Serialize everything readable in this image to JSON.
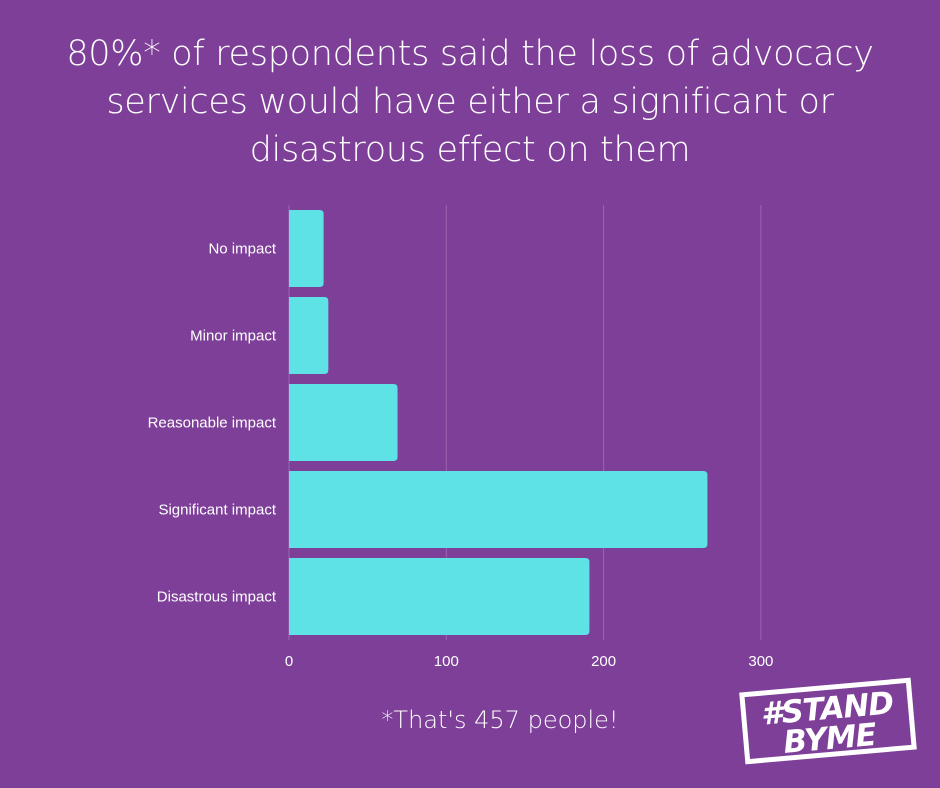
{
  "title": "80%* of respondents said the loss of advocacy services would have either a significant or disastrous effect on them",
  "footnote": "*That's 457 people!",
  "logo": {
    "line1": "#STAND",
    "line2": "BYME"
  },
  "colors": {
    "background": "#7e3f98",
    "bar": "#5ee2e6",
    "text": "#ffffff",
    "grid": "#9a67b0"
  },
  "chart_data": {
    "type": "bar",
    "orientation": "horizontal",
    "categories": [
      "No impact",
      "Minor impact",
      "Reasonable impact",
      "Significant impact",
      "Disastrous impact"
    ],
    "values": [
      22,
      25,
      69,
      266,
      191
    ],
    "xticks": [
      0,
      100,
      200,
      300
    ],
    "xlim": [
      0,
      370
    ],
    "grid": true,
    "xlabel": "",
    "ylabel": ""
  }
}
